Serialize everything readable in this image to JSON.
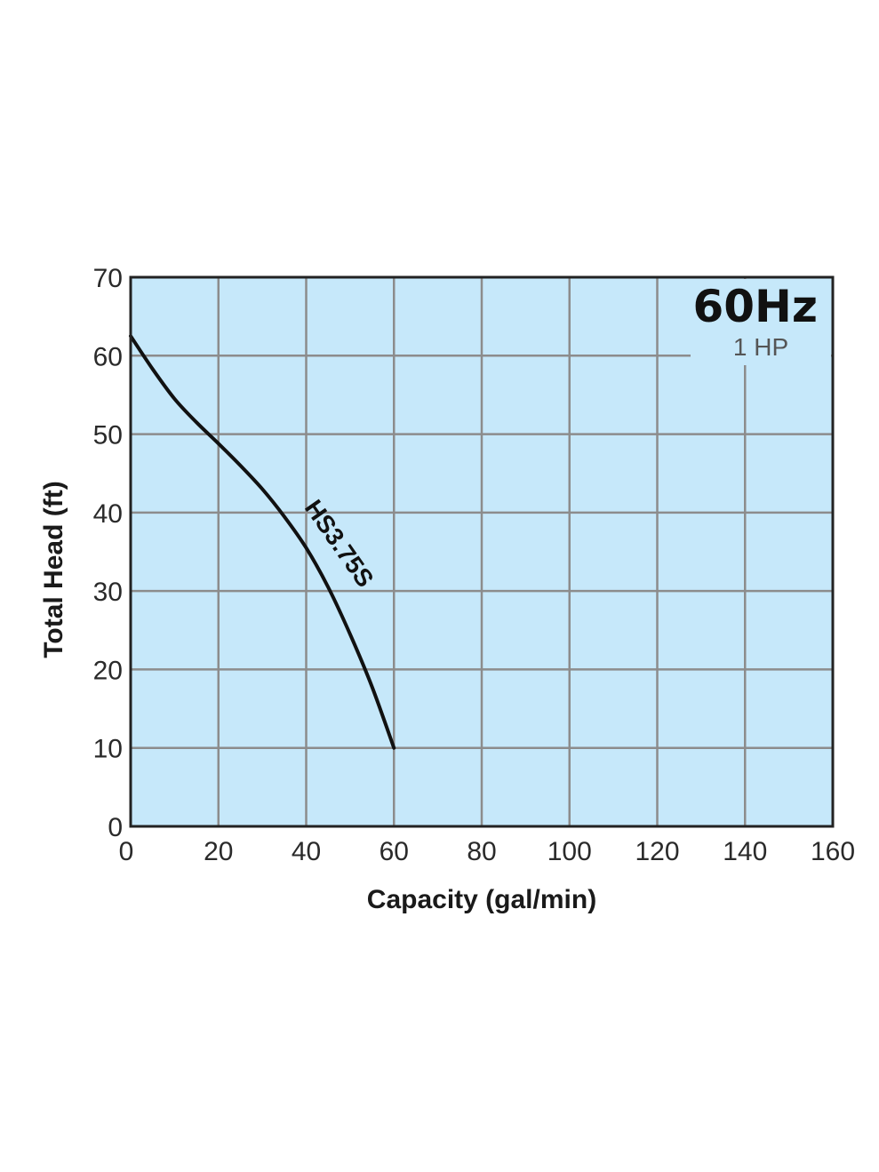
{
  "chart_data": {
    "type": "line",
    "xlabel": "Capacity (gal/min)",
    "ylabel": "Total Head (ft)",
    "xlim": [
      0,
      160
    ],
    "ylim": [
      0,
      70
    ],
    "x_ticks": [
      "0",
      "20",
      "40",
      "60",
      "80",
      "100",
      "120",
      "140",
      "160"
    ],
    "y_ticks": [
      "0",
      "10",
      "20",
      "30",
      "40",
      "50",
      "60",
      "70"
    ],
    "grid": true,
    "background_color": "#c6e8fa",
    "grid_color": "#8c8c8c",
    "line_color": "#111111",
    "annotations": {
      "frequency": "60Hz",
      "power": "1 HP"
    },
    "series": [
      {
        "name": "HS3.75S",
        "x": [
          0,
          5,
          10,
          15,
          20,
          25,
          30,
          35,
          40,
          45,
          50,
          55,
          60
        ],
        "y": [
          62.5,
          58.3,
          54.5,
          51.5,
          48.8,
          46.0,
          43.0,
          39.5,
          35.5,
          30.5,
          24.5,
          17.8,
          10.0
        ]
      }
    ]
  }
}
